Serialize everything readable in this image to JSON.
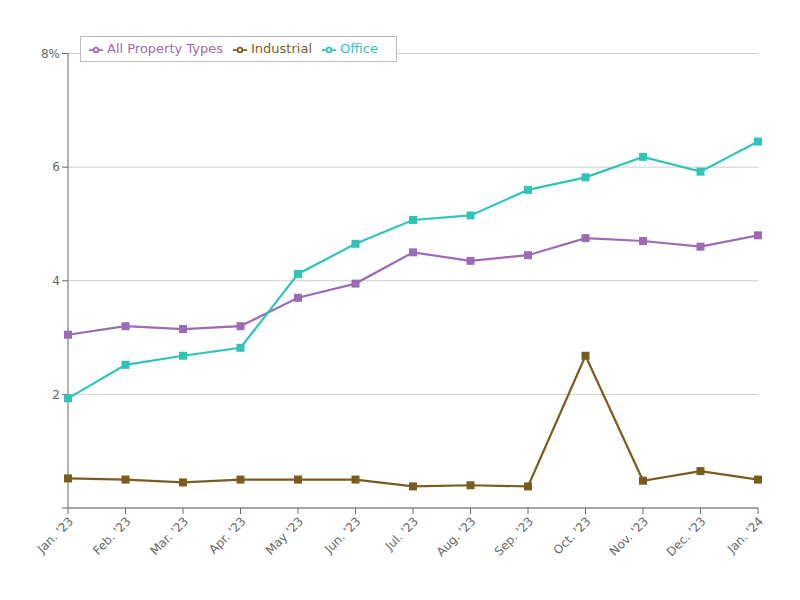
{
  "chart_data": {
    "type": "line",
    "categories": [
      "Jan. '23",
      "Feb. '23",
      "Mar. '23",
      "Apr. '23",
      "May '23",
      "Jun. '23",
      "Jul. '23",
      "Aug. '23",
      "Sep. '23",
      "Oct. '23",
      "Nov. '23",
      "Dec. '23",
      "Jan. '24"
    ],
    "series": [
      {
        "name": "All Property Types",
        "color": "#9B6BB5",
        "values": [
          3.05,
          3.2,
          3.15,
          3.2,
          3.7,
          3.95,
          4.5,
          4.35,
          4.45,
          4.75,
          4.7,
          4.6,
          4.8
        ]
      },
      {
        "name": "Office",
        "color": "#2EC4B6",
        "values": [
          1.93,
          2.52,
          2.68,
          2.82,
          4.12,
          4.65,
          5.07,
          5.15,
          5.6,
          5.82,
          6.18,
          5.92,
          6.45
        ]
      },
      {
        "name": "Industrial",
        "color": "#7A5C1E",
        "values": [
          0.52,
          0.5,
          0.45,
          0.5,
          0.5,
          0.5,
          0.38,
          0.4,
          0.38,
          2.68,
          0.48,
          0.65,
          0.5
        ]
      }
    ],
    "marker": "square",
    "ylim": [
      0,
      8
    ],
    "yticks": [
      {
        "value": 0,
        "label": ""
      },
      2,
      4,
      6,
      {
        "value": 8,
        "label": "8%"
      }
    ],
    "grid": "y",
    "legend": "upper left"
  }
}
